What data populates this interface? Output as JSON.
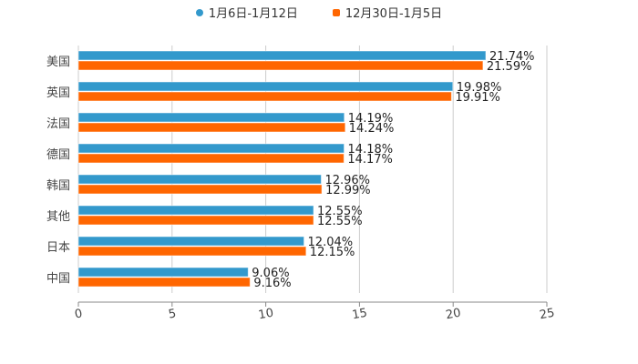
{
  "chart_data": {
    "type": "bar",
    "orientation": "horizontal",
    "title": "",
    "categories": [
      "美国",
      "英国",
      "法国",
      "德国",
      "韩国",
      "其他",
      "日本",
      "中国"
    ],
    "series": [
      {
        "name": "1月6日-1月12日",
        "color": "#3399cc",
        "values": [
          21.74,
          19.98,
          14.19,
          14.18,
          12.96,
          12.55,
          12.04,
          9.06
        ],
        "labels": [
          "21.74%",
          "19.98%",
          "14.19%",
          "14.18%",
          "12.96%",
          "12.55%",
          "12.04%",
          "9.06%"
        ]
      },
      {
        "name": "12月30日-1月5日",
        "color": "#ff6600",
        "values": [
          21.59,
          19.91,
          14.24,
          14.17,
          12.99,
          12.55,
          12.15,
          9.16
        ],
        "labels": [
          "21.59%",
          "19.91%",
          "14.24%",
          "14.17%",
          "12.99%",
          "12.55%",
          "12.15%",
          "9.16%"
        ]
      }
    ],
    "xlim": [
      0,
      25
    ],
    "xticks": [
      "0",
      "5",
      "10",
      "15",
      "20",
      "25"
    ],
    "grid": true,
    "legend": "top-center",
    "xlabel": "",
    "ylabel": ""
  }
}
